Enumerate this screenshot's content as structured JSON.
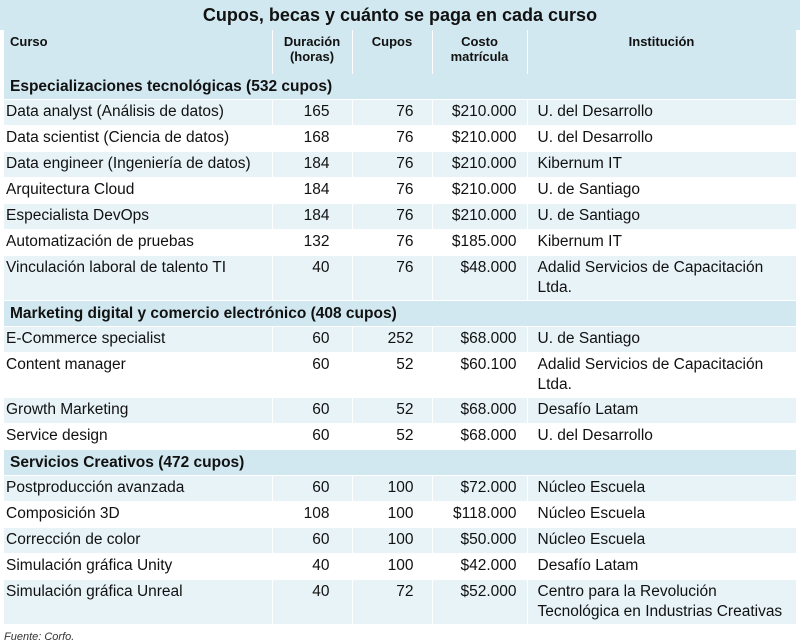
{
  "title": "Cupos, becas y cuánto se paga en cada curso",
  "headers": {
    "curso": "Curso",
    "duracion_1": "Duración",
    "duracion_2": "(horas)",
    "cupos": "Cupos",
    "costo_1": "Costo",
    "costo_2": "matrícula",
    "institucion": "Institución"
  },
  "sections": [
    {
      "title": "Especializaciones tecnológicas (532 cupos)",
      "rows": [
        {
          "curso": "Data analyst (Análisis de datos)",
          "duracion": "165",
          "cupos": "76",
          "costo": "$210.000",
          "institucion": "U. del Desarrollo"
        },
        {
          "curso": "Data scientist (Ciencia de datos)",
          "duracion": "168",
          "cupos": "76",
          "costo": "$210.000",
          "institucion": "U. del Desarrollo"
        },
        {
          "curso": "Data engineer (Ingeniería de datos)",
          "duracion": "184",
          "cupos": "76",
          "costo": "$210.000",
          "institucion": "Kibernum IT"
        },
        {
          "curso": "Arquitectura Cloud",
          "duracion": "184",
          "cupos": "76",
          "costo": "$210.000",
          "institucion": "U. de Santiago"
        },
        {
          "curso": "Especialista DevOps",
          "duracion": "184",
          "cupos": "76",
          "costo": "$210.000",
          "institucion": "U. de Santiago"
        },
        {
          "curso": "Automatización de pruebas",
          "duracion": "132",
          "cupos": "76",
          "costo": "$185.000",
          "institucion": "Kibernum IT"
        },
        {
          "curso": "Vinculación laboral de talento TI",
          "duracion": "40",
          "cupos": "76",
          "costo": "$48.000",
          "institucion": "Adalid Servicios de Capacitación Ltda."
        }
      ]
    },
    {
      "title": "Marketing digital y comercio electrónico (408 cupos)",
      "rows": [
        {
          "curso": "E-Commerce specialist",
          "duracion": "60",
          "cupos": "252",
          "costo": "$68.000",
          "institucion": "U. de Santiago"
        },
        {
          "curso": "Content manager",
          "duracion": "60",
          "cupos": "52",
          "costo": "$60.100",
          "institucion": "Adalid Servicios de Capacitación Ltda."
        },
        {
          "curso": "Growth Marketing",
          "duracion": "60",
          "cupos": "52",
          "costo": "$68.000",
          "institucion": "Desafío Latam"
        },
        {
          "curso": "Service design",
          "duracion": "60",
          "cupos": "52",
          "costo": "$68.000",
          "institucion": "U. del Desarrollo"
        }
      ]
    },
    {
      "title": "Servicios Creativos (472 cupos)",
      "rows": [
        {
          "curso": "Postproducción avanzada",
          "duracion": "60",
          "cupos": "100",
          "costo": "$72.000",
          "institucion": "Núcleo Escuela"
        },
        {
          "curso": "Composición 3D",
          "duracion": "108",
          "cupos": "100",
          "costo": "$118.000",
          "institucion": "Núcleo Escuela"
        },
        {
          "curso": "Corrección de color",
          "duracion": "60",
          "cupos": "100",
          "costo": "$50.000",
          "institucion": "Núcleo Escuela"
        },
        {
          "curso": "Simulación gráfica Unity",
          "duracion": "40",
          "cupos": "100",
          "costo": "$42.000",
          "institucion": "Desafío Latam"
        },
        {
          "curso": "Simulación gráfica Unreal",
          "duracion": "40",
          "cupos": "72",
          "costo": "$52.000",
          "institucion": "Centro para la Revolución Tecnológica en Industrias Creativas"
        }
      ]
    }
  ],
  "source": "Fuente: Corfo.",
  "colors": {
    "header_bg": "#d2e8f0",
    "row_alt": "#e8f3f8"
  }
}
